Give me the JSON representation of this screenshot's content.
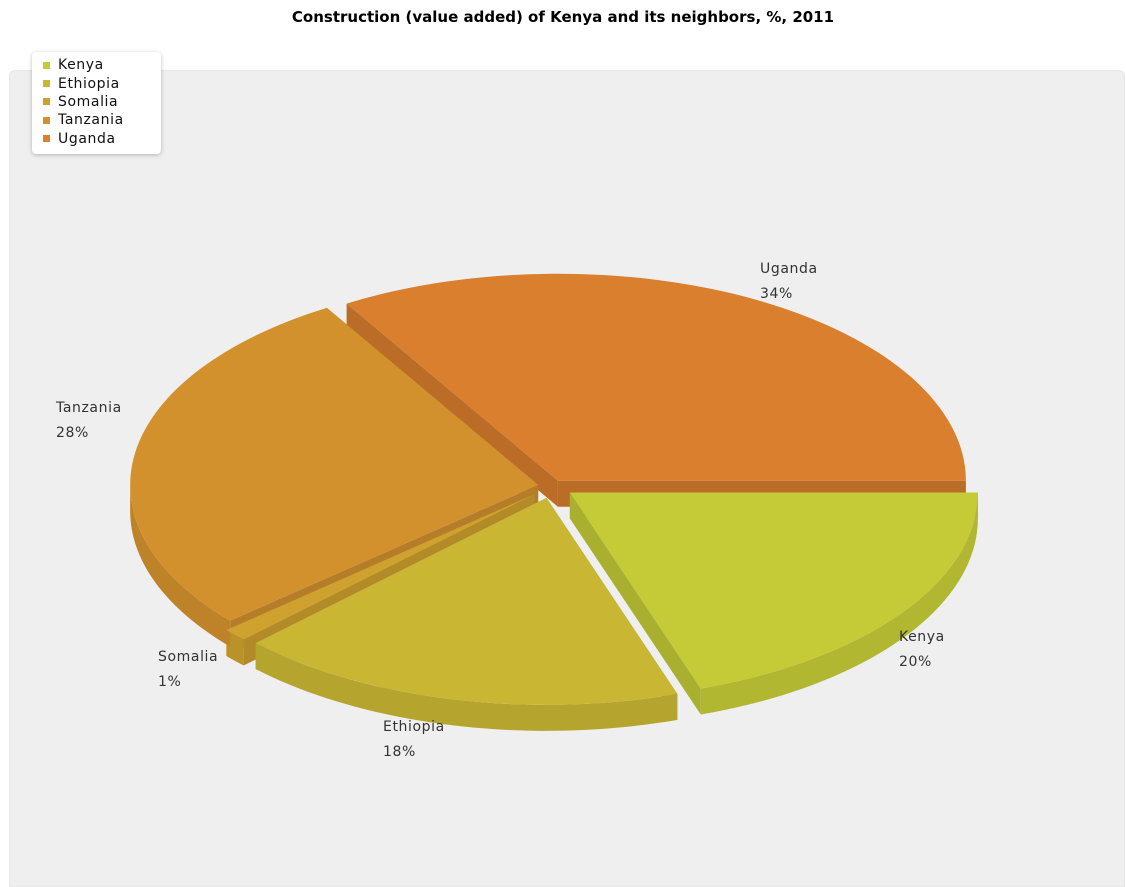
{
  "chart_data": {
    "type": "pie",
    "title": "Construction (value added) of Kenya and its neighbors, %, 2011",
    "legend_position": "top-left",
    "slices": [
      {
        "label": "Kenya",
        "value": 20,
        "display": "20%",
        "color": "#c5cb36"
      },
      {
        "label": "Ethiopia",
        "value": 18,
        "display": "18%",
        "color": "#c9b733"
      },
      {
        "label": "Somalia",
        "value": 1,
        "display": "1%",
        "color": "#cfa22f"
      },
      {
        "label": "Tanzania",
        "value": 28,
        "display": "28%",
        "color": "#d3912d"
      },
      {
        "label": "Uganda",
        "value": 34,
        "display": "34%",
        "color": "#d97f2d"
      }
    ]
  }
}
